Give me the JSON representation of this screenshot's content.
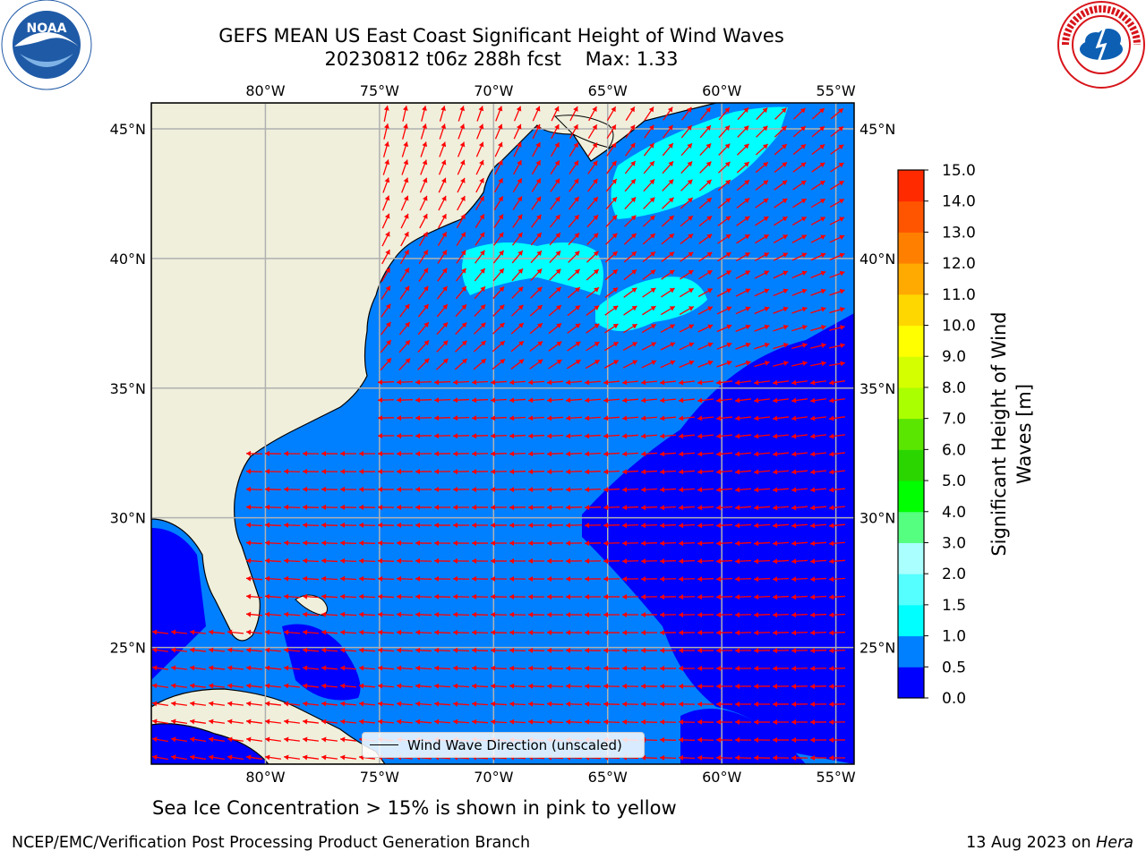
{
  "title": {
    "line1": "GEFS MEAN US East Coast Significant Height of Wind Waves",
    "line2": "20230812 t06z 288h fcst    Max: 1.33"
  },
  "logos": {
    "left": {
      "name": "NOAA",
      "icon": "noaa-logo",
      "colors": [
        "#1f5aa6",
        "#ffffff"
      ]
    },
    "right": {
      "name": "NATIONAL WEATHER SERVICE",
      "icon": "nws-logo",
      "colors": [
        "#d7141a",
        "#0d5fb3"
      ]
    }
  },
  "map": {
    "lon_range": [
      -85,
      -54.2
    ],
    "lat_range": [
      20.5,
      46
    ],
    "lon_ticks": [
      -80,
      -75,
      -70,
      -65,
      -60,
      -55
    ],
    "lon_labels": [
      "80°W",
      "75°W",
      "70°W",
      "65°W",
      "60°W",
      "55°W"
    ],
    "lat_ticks": [
      25,
      30,
      35,
      40,
      45
    ],
    "lat_labels": [
      "25°N",
      "30°N",
      "35°N",
      "40°N",
      "45°N"
    ],
    "grid": true,
    "land_color": "#efefdc",
    "ocean_base_color": "#0080ff",
    "vector_color": "#ff0000"
  },
  "colorbar": {
    "label_line1": "Significant Height of Wind",
    "label_line2": "Waves [m]",
    "levels": [
      "0.0",
      "0.5",
      "1.0",
      "1.5",
      "2.0",
      "3.0",
      "4.0",
      "5.0",
      "6.0",
      "7.0",
      "8.0",
      "9.0",
      "10.0",
      "11.0",
      "12.0",
      "13.0",
      "14.0",
      "15.0"
    ],
    "colors": [
      "#0000ff",
      "#0080ff",
      "#00ffff",
      "#55ffff",
      "#aaffff",
      "#55ff80",
      "#00ff00",
      "#2bd600",
      "#5ae600",
      "#aaff00",
      "#d4ff00",
      "#ffff00",
      "#ffd700",
      "#ffaa00",
      "#ff8000",
      "#ff5500",
      "#ff2a00"
    ]
  },
  "legend": {
    "label": "Wind Wave Direction (unscaled)"
  },
  "caption": "Sea Ice Concentration > 15% is shown in pink to yellow",
  "footer": {
    "left": "NCEP/EMC/Verification Post Processing Product Generation Branch",
    "right_date": "13 Aug 2023 on ",
    "right_host": "Hera"
  }
}
